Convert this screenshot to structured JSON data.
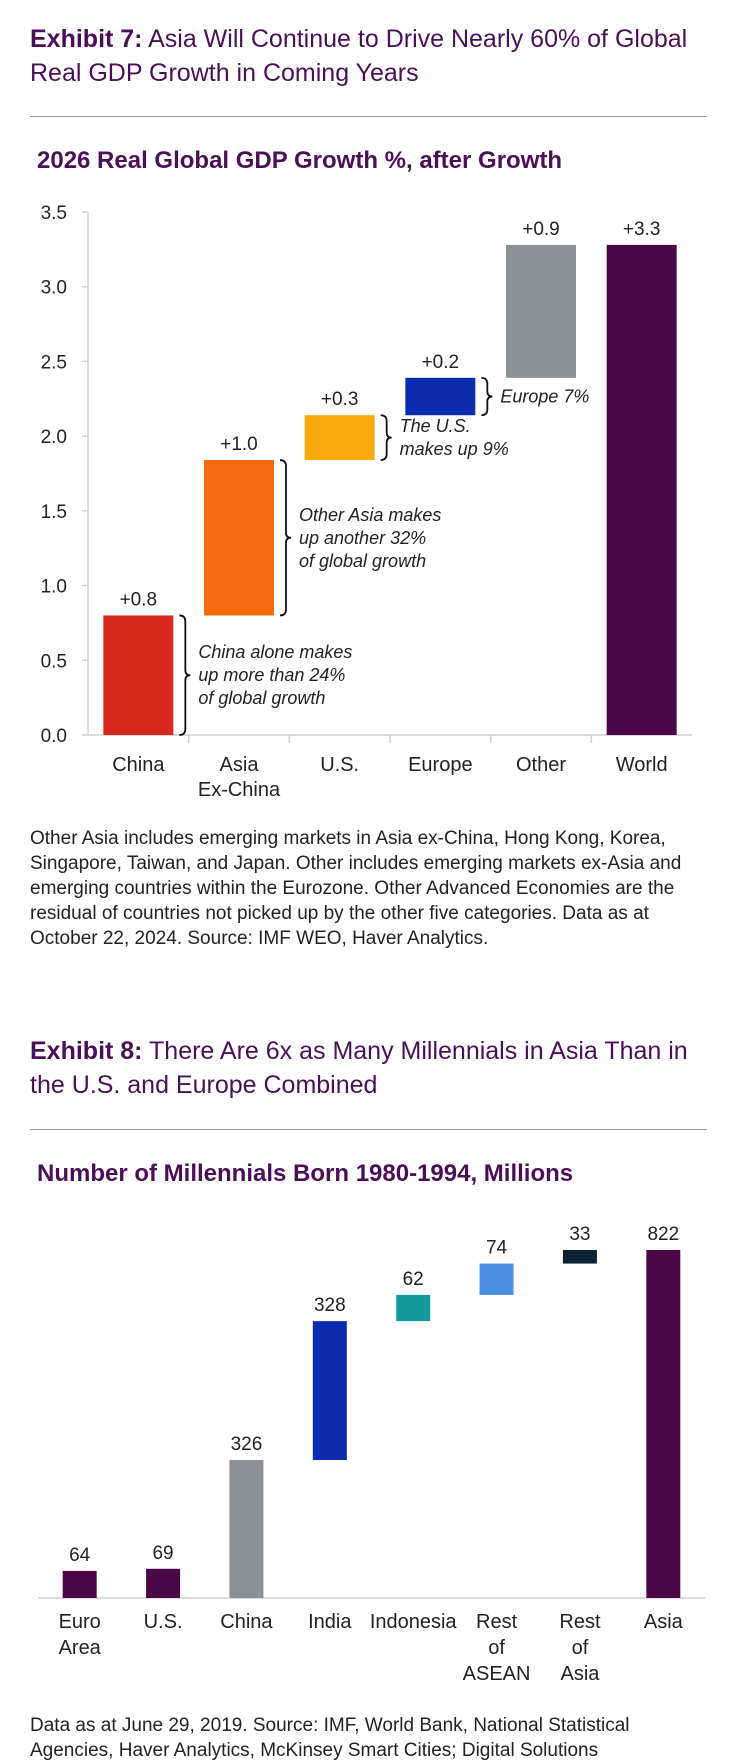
{
  "exhibit7": {
    "lead": "Exhibit 7:",
    "title": "Asia Will Continue to Drive Nearly 60% of Global Real GDP Growth in Coming Years",
    "note": "Other Asia includes emerging markets in Asia ex-China, Hong Kong, Korea, Singapore, Taiwan, and Japan. Other includes emerging markets ex-Asia and emerging countries within the Eurozone. Other Advanced Economies are the residual of countries not picked up by the other five categories. Data as at October 22, 2024. Source: IMF WEO, Haver Analytics."
  },
  "exhibit8": {
    "lead": "Exhibit 8:",
    "title": "There Are 6x as Many Millennials in Asia Than in the U.S. and Europe Combined",
    "note": "Data as at June 29, 2019. Source: IMF, World Bank, National Statistical Agencies, Haver Analytics, McKinsey Smart Cities; Digital Solutions"
  },
  "chart_data": [
    {
      "type": "bar",
      "subtype": "waterfall",
      "title": "2026 Real Global GDP Growth %, after Growth",
      "categories": [
        "China",
        "Asia Ex-China",
        "U.S.",
        "Europe",
        "Other",
        "World"
      ],
      "category_lines": [
        [
          "China"
        ],
        [
          "Asia",
          "Ex-China"
        ],
        [
          "U.S."
        ],
        [
          "Europe"
        ],
        [
          "Other"
        ],
        [
          "World"
        ]
      ],
      "values": [
        0.8,
        1.0,
        0.3,
        0.2,
        0.9,
        3.3
      ],
      "ranges": [
        [
          0,
          0.8
        ],
        [
          0.8,
          1.84
        ],
        [
          1.84,
          2.14
        ],
        [
          2.14,
          2.39
        ],
        [
          2.39,
          3.28
        ],
        [
          0,
          3.28
        ]
      ],
      "data_labels": [
        "+0.8",
        "+1.0",
        "+0.3",
        "+0.2",
        "+0.9",
        "+3.3"
      ],
      "colors": [
        "#d9291c",
        "#f26a0b",
        "#fda80f",
        "#0b2cb0",
        "#8a9297",
        "#4b0647"
      ],
      "ylim": [
        0,
        3.5
      ],
      "yticks": [
        0.0,
        0.5,
        1.0,
        1.5,
        2.0,
        2.5,
        3.0,
        3.5
      ],
      "ytick_labels": [
        "0.0",
        "0.5",
        "1.0",
        "1.5",
        "2.0",
        "2.5",
        "3.0",
        "3.5"
      ],
      "grid": false,
      "annotations": [
        {
          "category": "China",
          "lines": [
            "China alone makes",
            "up more than 24%",
            "of global growth"
          ]
        },
        {
          "category": "Asia Ex-China",
          "lines": [
            "Other Asia makes",
            "up another 32%",
            "of global growth"
          ]
        },
        {
          "category": "U.S.",
          "lines": [
            "The U.S.",
            "makes up 9%"
          ]
        },
        {
          "category": "Europe",
          "lines": [
            "Europe 7%"
          ]
        }
      ]
    },
    {
      "type": "bar",
      "subtype": "waterfall",
      "title": "Number of Millennials Born 1980-1994, Millions",
      "categories": [
        "Euro Area",
        "U.S.",
        "China",
        "India",
        "Indonesia",
        "Rest of ASEAN",
        "Rest of Asia",
        "Asia"
      ],
      "category_lines": [
        [
          "Euro",
          "Area"
        ],
        [
          "U.S."
        ],
        [
          "China"
        ],
        [
          "India"
        ],
        [
          "Indonesia"
        ],
        [
          "Rest",
          "of",
          "ASEAN"
        ],
        [
          "Rest",
          "of",
          "Asia"
        ],
        [
          "Asia"
        ]
      ],
      "values": [
        64,
        69,
        326,
        328,
        62,
        74,
        33,
        822
      ],
      "ranges": [
        [
          0,
          64
        ],
        [
          0,
          69
        ],
        [
          0,
          326
        ],
        [
          326,
          654
        ],
        [
          654,
          716
        ],
        [
          716,
          790
        ],
        [
          790,
          822
        ],
        [
          0,
          822
        ]
      ],
      "data_labels": [
        "64",
        "69",
        "326",
        "328",
        "62",
        "74",
        "33",
        "822"
      ],
      "colors": [
        "#4b0647",
        "#4b0647",
        "#8a9297",
        "#0b2cb0",
        "#13999b",
        "#4a90e2",
        "#0a2233",
        "#4b0647"
      ],
      "grid": false
    }
  ]
}
